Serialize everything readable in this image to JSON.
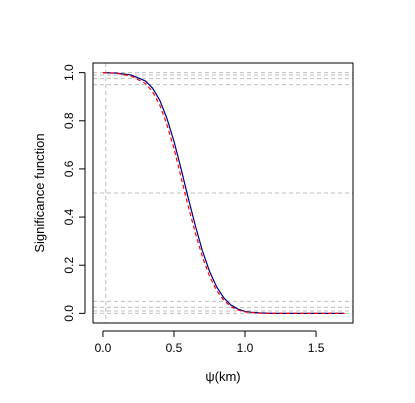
{
  "chart_data": {
    "type": "line",
    "xlabel": "ψ(km)",
    "ylabel": "Significance function",
    "xlim": [
      -0.07,
      1.76
    ],
    "ylim": [
      -0.04,
      1.04
    ],
    "x_ticks": [
      "0.0",
      "0.5",
      "1.0",
      "1.5"
    ],
    "y_ticks": [
      "0.0",
      "0.2",
      "0.4",
      "0.6",
      "0.8",
      "1.0"
    ],
    "grid": false,
    "reference_lines": {
      "horizontal": [
        0.0,
        0.01,
        0.025,
        0.05,
        0.5,
        0.95,
        0.975,
        0.99,
        1.0
      ],
      "vertical": [
        0.02
      ],
      "color": "#bebebe",
      "style": "dashed"
    },
    "series": [
      {
        "color": "#00008B",
        "style": "solid",
        "x": [
          0.0,
          0.1,
          0.2,
          0.3,
          0.35,
          0.4,
          0.45,
          0.5,
          0.55,
          0.6,
          0.65,
          0.7,
          0.75,
          0.8,
          0.85,
          0.9,
          0.95,
          1.0,
          1.05,
          1.1,
          1.15,
          1.2,
          1.3,
          1.4,
          1.5,
          1.6,
          1.7
        ],
        "values": [
          1.0,
          0.998,
          0.99,
          0.965,
          0.935,
          0.885,
          0.81,
          0.715,
          0.6,
          0.48,
          0.365,
          0.26,
          0.175,
          0.11,
          0.065,
          0.035,
          0.018,
          0.008,
          0.004,
          0.002,
          0.001,
          0.0,
          0.0,
          0.0,
          0.0,
          0.0,
          0.0
        ]
      },
      {
        "color": "#FF0000",
        "style": "dashed",
        "x": [
          0.0,
          0.1,
          0.2,
          0.3,
          0.35,
          0.4,
          0.45,
          0.5,
          0.55,
          0.6,
          0.65,
          0.7,
          0.75,
          0.8,
          0.85,
          0.9,
          0.95,
          1.0,
          1.05,
          1.1,
          1.15,
          1.2,
          1.3,
          1.4,
          1.5,
          1.6,
          1.7
        ],
        "values": [
          1.0,
          0.997,
          0.985,
          0.955,
          0.92,
          0.865,
          0.785,
          0.685,
          0.565,
          0.445,
          0.335,
          0.235,
          0.155,
          0.095,
          0.055,
          0.028,
          0.014,
          0.006,
          0.003,
          0.001,
          0.0,
          0.0,
          0.0,
          0.0,
          0.0,
          0.0,
          0.0
        ]
      }
    ]
  }
}
